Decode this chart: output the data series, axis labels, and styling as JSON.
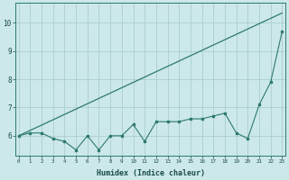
{
  "xlabel": "Humidex (Indice chaleur)",
  "x_values": [
    0,
    1,
    2,
    3,
    4,
    5,
    6,
    7,
    8,
    9,
    10,
    11,
    12,
    13,
    14,
    15,
    16,
    17,
    18,
    19,
    20,
    21,
    22,
    23
  ],
  "y_jagged": [
    6.0,
    6.1,
    6.1,
    5.9,
    5.8,
    5.5,
    6.0,
    5.5,
    6.0,
    6.0,
    6.4,
    5.8,
    6.5,
    6.5,
    6.5,
    6.6,
    6.6,
    6.7,
    6.8,
    6.1,
    5.9,
    7.1,
    7.9,
    9.7
  ],
  "y_line_x": [
    0,
    23
  ],
  "y_line_y": [
    6.0,
    10.35
  ],
  "bg_color": "#cce8e8",
  "line_color": "#2d7a6e",
  "grid_color": "#aacece",
  "ylim": [
    5.3,
    10.7
  ],
  "xlim": [
    -0.3,
    23.3
  ],
  "yticks": [
    6,
    7,
    8,
    9,
    10
  ],
  "xticks": [
    0,
    1,
    2,
    3,
    4,
    5,
    6,
    7,
    8,
    9,
    10,
    11,
    12,
    13,
    14,
    15,
    16,
    17,
    18,
    19,
    20,
    21,
    22,
    23
  ]
}
